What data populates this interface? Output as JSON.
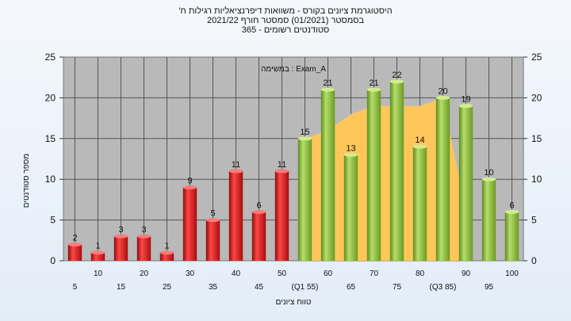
{
  "chart_data": {
    "type": "bar",
    "title_lines": [
      "'היסטוגרמת ציונים בקורס - משוואות דיפרנציאליות רגילות ח",
      "בסמסטר  (01/2021)  סמסטר חורף  2021/22",
      "סטודנטים רשומים - 365"
    ],
    "annotation": "במשימה : Exam_A",
    "ylabel": "מספר סטודנטים",
    "xlabel": "טווח ציונים",
    "ylim": [
      0,
      25
    ],
    "yticks": [
      0,
      5,
      10,
      15,
      20,
      25
    ],
    "grid": true,
    "categories": [
      "5",
      "10",
      "15",
      "20",
      "25",
      "30",
      "35",
      "40",
      "45",
      "50",
      "55",
      "60",
      "65",
      "70",
      "75",
      "80",
      "85",
      "90",
      "95",
      "100"
    ],
    "category_labels": [
      "5",
      "10",
      "15",
      "20",
      "25",
      "30",
      "35",
      "40",
      "45",
      "50",
      "(Q1 55)",
      "60",
      "65",
      "70",
      "75",
      "80",
      "(Q3 85)",
      "90",
      "95",
      "100"
    ],
    "values": [
      2,
      1,
      3,
      3,
      1,
      9,
      5,
      11,
      6,
      11,
      15,
      21,
      13,
      21,
      22,
      14,
      20,
      19,
      10,
      6
    ],
    "area_series": [
      null,
      null,
      null,
      null,
      null,
      null,
      null,
      null,
      null,
      null,
      15,
      16,
      18,
      19,
      19,
      19,
      20,
      6,
      null,
      null
    ],
    "colors": {
      "low_bar": "#e21b1b",
      "high_bar": "#8fbf3a",
      "area": "#ffc65a",
      "plot_bg": "#b9b9b9",
      "grid": "#555555"
    }
  }
}
